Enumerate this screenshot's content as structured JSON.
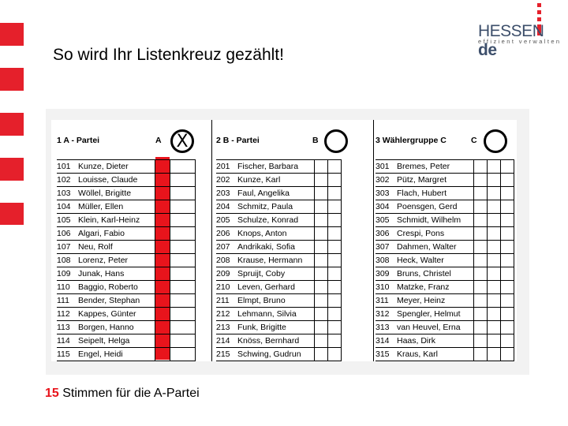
{
  "title": "So wird Ihr Listenkreuz gezählt!",
  "logo": {
    "main": "HESSEN",
    "suffix": "de",
    "tagline": "effizient verwalten"
  },
  "colors": {
    "accent_red": "#e8141c",
    "logo_blue": "#3d4f6b"
  },
  "columns": [
    {
      "heading": "1 A - Partei",
      "letter": "A",
      "marked": true,
      "mark": "X",
      "candidates": [
        {
          "no": "101",
          "name": "Kunze, Dieter"
        },
        {
          "no": "102",
          "name": "Louisse, Claude"
        },
        {
          "no": "103",
          "name": "Wöllel, Brigitte"
        },
        {
          "no": "104",
          "name": "Müller, Ellen"
        },
        {
          "no": "105",
          "name": "Klein, Karl-Heinz"
        },
        {
          "no": "106",
          "name": "Algari, Fabio"
        },
        {
          "no": "107",
          "name": "Neu, Rolf"
        },
        {
          "no": "108",
          "name": "Lorenz, Peter"
        },
        {
          "no": "109",
          "name": "Junak, Hans"
        },
        {
          "no": "110",
          "name": "Baggio, Roberto"
        },
        {
          "no": "111",
          "name": "Bender, Stephan"
        },
        {
          "no": "112",
          "name": "Kappes, Günter"
        },
        {
          "no": "113",
          "name": "Borgen, Hanno"
        },
        {
          "no": "114",
          "name": "Seipelt, Helga"
        },
        {
          "no": "115",
          "name": "Engel, Heidi"
        }
      ]
    },
    {
      "heading": "2 B - Partei",
      "letter": "B",
      "marked": false,
      "mark": "",
      "candidates": [
        {
          "no": "201",
          "name": "Fischer, Barbara"
        },
        {
          "no": "202",
          "name": "Kunze, Karl"
        },
        {
          "no": "203",
          "name": "Faul, Angelika"
        },
        {
          "no": "204",
          "name": "Schmitz, Paula"
        },
        {
          "no": "205",
          "name": "Schulze, Konrad"
        },
        {
          "no": "206",
          "name": "Knops, Anton"
        },
        {
          "no": "207",
          "name": "Andrikaki, Sofia"
        },
        {
          "no": "208",
          "name": "Krause, Hermann"
        },
        {
          "no": "209",
          "name": "Spruijt, Coby"
        },
        {
          "no": "210",
          "name": "Leven, Gerhard"
        },
        {
          "no": "211",
          "name": "Elmpt, Bruno"
        },
        {
          "no": "212",
          "name": "Lehmann, Silvia"
        },
        {
          "no": "213",
          "name": "Funk, Brigitte"
        },
        {
          "no": "214",
          "name": "Knöss, Bernhard"
        },
        {
          "no": "215",
          "name": "Schwing, Gudrun"
        }
      ]
    },
    {
      "heading": "3 Wählergruppe C",
      "letter": "C",
      "marked": false,
      "mark": "",
      "candidates": [
        {
          "no": "301",
          "name": "Bremes, Peter"
        },
        {
          "no": "302",
          "name": "Pütz, Margret"
        },
        {
          "no": "303",
          "name": "Flach, Hubert"
        },
        {
          "no": "304",
          "name": "Poensgen, Gerd"
        },
        {
          "no": "305",
          "name": "Schmidt, Wilhelm"
        },
        {
          "no": "306",
          "name": "Crespi, Pons"
        },
        {
          "no": "307",
          "name": "Dahmen, Walter"
        },
        {
          "no": "308",
          "name": "Heck, Walter"
        },
        {
          "no": "309",
          "name": "Bruns, Christel"
        },
        {
          "no": "310",
          "name": "Matzke, Franz"
        },
        {
          "no": "311",
          "name": "Meyer, Heinz"
        },
        {
          "no": "312",
          "name": "Spengler, Helmut"
        },
        {
          "no": "313",
          "name": "van Heuvel, Erna"
        },
        {
          "no": "314",
          "name": "Haas, Dirk"
        },
        {
          "no": "315",
          "name": "Kraus, Karl"
        }
      ]
    }
  ],
  "footer": {
    "count": "15",
    "text": "Stimmen für die A-Partei"
  }
}
